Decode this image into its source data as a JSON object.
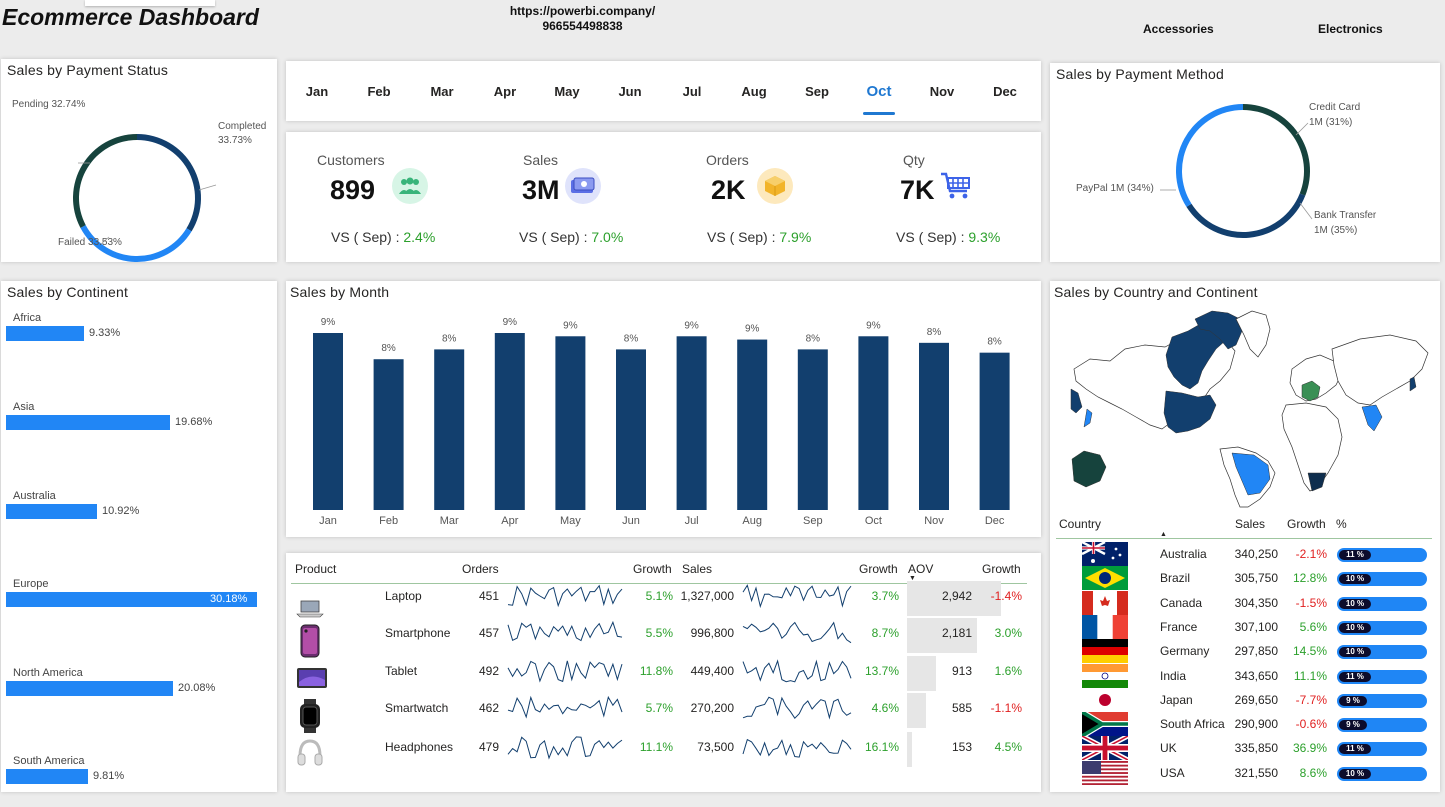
{
  "header": {
    "title": "Ecommerce Dashboard",
    "link_url": "https://powerbi.company/",
    "link_phone": "966554498838",
    "category_buttons": [
      "Accessories",
      "Electronics"
    ]
  },
  "months": {
    "items": [
      "Jan",
      "Feb",
      "Mar",
      "Apr",
      "May",
      "Jun",
      "Jul",
      "Aug",
      "Sep",
      "Oct",
      "Nov",
      "Dec"
    ],
    "selected": "Oct"
  },
  "kpis": [
    {
      "label": "Customers",
      "value": "899",
      "vs_label": "VS ( Sep) : ",
      "vs_value": "2.4%",
      "icon": "users-icon",
      "icon_bg": "#d7f5e6",
      "icon_color": "#38b47a"
    },
    {
      "label": "Sales",
      "value": "3M",
      "vs_label": "VS ( Sep) : ",
      "vs_value": "7.0%",
      "icon": "money-icon",
      "icon_bg": "#dfe3fb",
      "icon_color": "#4a5ee0"
    },
    {
      "label": "Orders",
      "value": "2K",
      "vs_label": "VS ( Sep) : ",
      "vs_value": "7.9%",
      "icon": "box-icon",
      "icon_bg": "#fde9bd",
      "icon_color": "#f2b42a"
    },
    {
      "label": "Qty",
      "value": "7K",
      "vs_label": "VS ( Sep) : ",
      "vs_value": "9.3%",
      "icon": "cart-icon",
      "icon_bg": "#ffffff",
      "icon_color": "#3d63e8"
    }
  ],
  "payment_status": {
    "title": "Sales by Payment Status",
    "chart_data": {
      "type": "pie",
      "donut": true,
      "slices": [
        {
          "label": "Completed",
          "value": 33.73,
          "display": "33.73%",
          "color": "#123f6e"
        },
        {
          "label": "Failed",
          "value": 33.53,
          "display": "33.53%",
          "color": "#2186f5"
        },
        {
          "label": "Pending",
          "value": 32.74,
          "display": "32.74%",
          "color": "#16433d"
        }
      ]
    },
    "labels": {
      "pending": "Pending 32.74%",
      "completed": "Completed",
      "completed_pct": "33.73%",
      "failed": "Failed 33.53%"
    }
  },
  "payment_method": {
    "title": "Sales by Payment Method",
    "chart_data": {
      "type": "pie",
      "donut": true,
      "slices": [
        {
          "label": "Credit Card",
          "value": 31,
          "display": "1M (31%)",
          "color": "#16433d"
        },
        {
          "label": "Bank Transfer",
          "value": 35,
          "display": "1M (35%)",
          "color": "#123f6e"
        },
        {
          "label": "PayPal",
          "value": 34,
          "display": "1M (34%)",
          "color": "#2186f5"
        }
      ]
    },
    "labels": {
      "credit": "Credit Card",
      "credit_val": "1M (31%)",
      "bank": "Bank Transfer",
      "bank_val": "1M (35%)",
      "paypal": "PayPal 1M (34%)"
    }
  },
  "continent": {
    "title": "Sales by Continent",
    "chart_data": {
      "type": "bar",
      "orientation": "horizontal",
      "categories": [
        "Africa",
        "Asia",
        "Australia",
        "Europe",
        "North America",
        "South America"
      ],
      "values": [
        9.33,
        19.68,
        10.92,
        30.18,
        20.08,
        9.81
      ],
      "labels": [
        "9.33%",
        "19.68%",
        "10.92%",
        "30.18%",
        "20.08%",
        "9.81%"
      ],
      "color": "#2186f5"
    }
  },
  "monthly": {
    "title": "Sales by Month",
    "chart_data": {
      "type": "bar",
      "categories": [
        "Jan",
        "Feb",
        "Mar",
        "Apr",
        "May",
        "Jun",
        "Jul",
        "Aug",
        "Sep",
        "Oct",
        "Nov",
        "Dec"
      ],
      "values": [
        9,
        8,
        8,
        9,
        9,
        8,
        9,
        9,
        8,
        9,
        8,
        8
      ],
      "labels": [
        "9%",
        "8%",
        "8%",
        "9%",
        "9%",
        "8%",
        "9%",
        "9%",
        "8%",
        "9%",
        "8%",
        "8%"
      ],
      "color": "#123f6e"
    }
  },
  "products": {
    "headers": {
      "product": "Product",
      "orders": "Orders",
      "growth1": "Growth",
      "sales": "Sales",
      "growth2": "Growth",
      "aov": "AOV",
      "growth3": "Growth"
    },
    "rows": [
      {
        "name": "Laptop",
        "orders": "451",
        "orders_growth": "5.1%",
        "sales": "1,327,000",
        "sales_growth": "3.7%",
        "aov": "2,942",
        "aov_value": 2942,
        "aov_growth": "-1.4%"
      },
      {
        "name": "Smartphone",
        "orders": "457",
        "orders_growth": "5.5%",
        "sales": "996,800",
        "sales_growth": "8.7%",
        "aov": "2,181",
        "aov_value": 2181,
        "aov_growth": "3.0%"
      },
      {
        "name": "Tablet",
        "orders": "492",
        "orders_growth": "11.8%",
        "sales": "449,400",
        "sales_growth": "13.7%",
        "aov": "913",
        "aov_value": 913,
        "aov_growth": "1.6%"
      },
      {
        "name": "Smartwatch",
        "orders": "462",
        "orders_growth": "5.7%",
        "sales": "270,200",
        "sales_growth": "4.6%",
        "aov": "585",
        "aov_value": 585,
        "aov_growth": "-1.1%"
      },
      {
        "name": "Headphones",
        "orders": "479",
        "orders_growth": "11.1%",
        "sales": "73,500",
        "sales_growth": "16.1%",
        "aov": "153",
        "aov_value": 153,
        "aov_growth": "4.5%"
      }
    ]
  },
  "country": {
    "title": "Sales by Country and Continent",
    "headers": {
      "country": "Country",
      "sales": "Sales",
      "growth": "Growth",
      "pct": "%"
    },
    "rows": [
      {
        "name": "Australia",
        "sales": "340,250",
        "growth": "-2.1%",
        "pct": "11 %",
        "flag": "australia-flag"
      },
      {
        "name": "Brazil",
        "sales": "305,750",
        "growth": "12.8%",
        "pct": "10 %",
        "flag": "brazil-flag"
      },
      {
        "name": "Canada",
        "sales": "304,350",
        "growth": "-1.5%",
        "pct": "10 %",
        "flag": "canada-flag"
      },
      {
        "name": "France",
        "sales": "307,100",
        "growth": "5.6%",
        "pct": "10 %",
        "flag": "france-flag"
      },
      {
        "name": "Germany",
        "sales": "297,850",
        "growth": "14.5%",
        "pct": "10 %",
        "flag": "germany-flag"
      },
      {
        "name": "India",
        "sales": "343,650",
        "growth": "11.1%",
        "pct": "11 %",
        "flag": "india-flag"
      },
      {
        "name": "Japan",
        "sales": "269,650",
        "growth": "-7.7%",
        "pct": "9 %",
        "flag": "japan-flag"
      },
      {
        "name": "South Africa",
        "sales": "290,900",
        "growth": "-0.6%",
        "pct": "9 %",
        "flag": "south-africa-flag"
      },
      {
        "name": "UK",
        "sales": "335,850",
        "growth": "36.9%",
        "pct": "11 %",
        "flag": "uk-flag"
      },
      {
        "name": "USA",
        "sales": "321,550",
        "growth": "8.6%",
        "pct": "10 %",
        "flag": "usa-flag"
      }
    ]
  },
  "colors": {
    "dark_blue": "#123f6e",
    "bright_blue": "#2186f5",
    "dark_green": "#16433d",
    "positive": "#2ca02c",
    "negative": "#e02020"
  }
}
